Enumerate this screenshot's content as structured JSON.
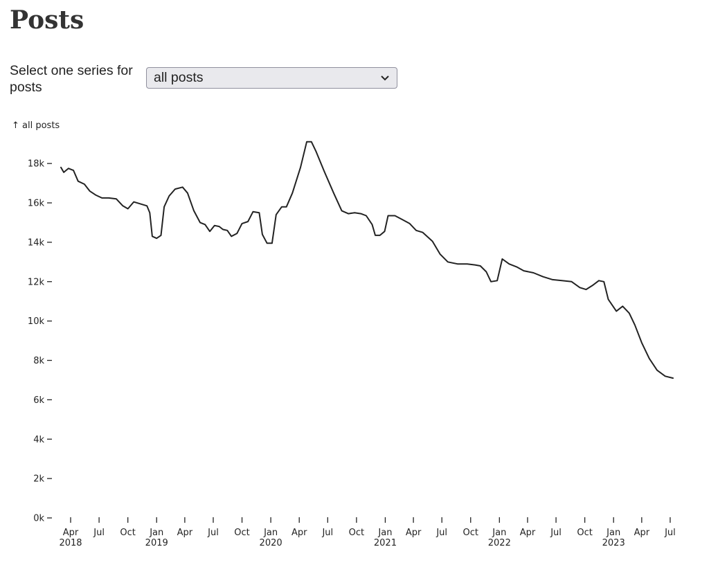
{
  "page": {
    "title": "Posts"
  },
  "control": {
    "label": "Select one series for posts",
    "selected": "all posts"
  },
  "chart_data": {
    "type": "line",
    "title": "",
    "ylabel": "↑ all posts",
    "xlabel": "",
    "series": [
      {
        "name": "all posts",
        "color": "#222222",
        "points": [
          [
            "2018-03-01",
            17800
          ],
          [
            "2018-03-10",
            17550
          ],
          [
            "2018-03-25",
            17750
          ],
          [
            "2018-04-10",
            17650
          ],
          [
            "2018-04-25",
            17100
          ],
          [
            "2018-05-15",
            16950
          ],
          [
            "2018-06-01",
            16600
          ],
          [
            "2018-06-20",
            16400
          ],
          [
            "2018-07-10",
            16250
          ],
          [
            "2018-08-01",
            16250
          ],
          [
            "2018-08-25",
            16200
          ],
          [
            "2018-09-15",
            15850
          ],
          [
            "2018-10-01",
            15700
          ],
          [
            "2018-10-20",
            16050
          ],
          [
            "2018-11-10",
            15950
          ],
          [
            "2018-12-01",
            15850
          ],
          [
            "2018-12-10",
            15500
          ],
          [
            "2018-12-18",
            14300
          ],
          [
            "2019-01-01",
            14200
          ],
          [
            "2019-01-15",
            14350
          ],
          [
            "2019-01-25",
            15800
          ],
          [
            "2019-02-10",
            16350
          ],
          [
            "2019-03-01",
            16700
          ],
          [
            "2019-03-25",
            16800
          ],
          [
            "2019-04-10",
            16500
          ],
          [
            "2019-04-30",
            15600
          ],
          [
            "2019-05-20",
            15000
          ],
          [
            "2019-06-05",
            14900
          ],
          [
            "2019-06-20",
            14550
          ],
          [
            "2019-07-05",
            14850
          ],
          [
            "2019-07-20",
            14800
          ],
          [
            "2019-08-01",
            14650
          ],
          [
            "2019-08-15",
            14600
          ],
          [
            "2019-08-28",
            14300
          ],
          [
            "2019-09-15",
            14450
          ],
          [
            "2019-10-01",
            14950
          ],
          [
            "2019-10-20",
            15050
          ],
          [
            "2019-11-05",
            15550
          ],
          [
            "2019-11-25",
            15500
          ],
          [
            "2019-12-05",
            14400
          ],
          [
            "2019-12-20",
            13950
          ],
          [
            "2020-01-05",
            13950
          ],
          [
            "2020-01-18",
            15400
          ],
          [
            "2020-02-05",
            15800
          ],
          [
            "2020-02-20",
            15800
          ],
          [
            "2020-03-10",
            16500
          ],
          [
            "2020-04-05",
            17800
          ],
          [
            "2020-04-25",
            19100
          ],
          [
            "2020-05-10",
            19100
          ],
          [
            "2020-05-25",
            18600
          ],
          [
            "2020-06-20",
            17600
          ],
          [
            "2020-07-20",
            16500
          ],
          [
            "2020-08-15",
            15600
          ],
          [
            "2020-09-05",
            15450
          ],
          [
            "2020-09-25",
            15500
          ],
          [
            "2020-10-15",
            15450
          ],
          [
            "2020-11-01",
            15350
          ],
          [
            "2020-11-20",
            14900
          ],
          [
            "2020-11-30",
            14350
          ],
          [
            "2020-12-15",
            14350
          ],
          [
            "2020-12-30",
            14550
          ],
          [
            "2021-01-10",
            15350
          ],
          [
            "2021-02-01",
            15350
          ],
          [
            "2021-02-25",
            15150
          ],
          [
            "2021-03-20",
            14950
          ],
          [
            "2021-04-10",
            14600
          ],
          [
            "2021-05-01",
            14500
          ],
          [
            "2021-06-01",
            14050
          ],
          [
            "2021-06-25",
            13400
          ],
          [
            "2021-07-20",
            13000
          ],
          [
            "2021-08-20",
            12900
          ],
          [
            "2021-09-20",
            12900
          ],
          [
            "2021-10-15",
            12850
          ],
          [
            "2021-11-01",
            12800
          ],
          [
            "2021-11-20",
            12500
          ],
          [
            "2021-12-05",
            12000
          ],
          [
            "2021-12-25",
            12050
          ],
          [
            "2022-01-10",
            13150
          ],
          [
            "2022-02-01",
            12900
          ],
          [
            "2022-02-25",
            12750
          ],
          [
            "2022-03-20",
            12550
          ],
          [
            "2022-04-20",
            12450
          ],
          [
            "2022-05-20",
            12250
          ],
          [
            "2022-06-20",
            12100
          ],
          [
            "2022-07-20",
            12050
          ],
          [
            "2022-08-20",
            12000
          ],
          [
            "2022-09-15",
            11700
          ],
          [
            "2022-10-05",
            11600
          ],
          [
            "2022-10-25",
            11800
          ],
          [
            "2022-11-15",
            12050
          ],
          [
            "2022-12-01",
            12000
          ],
          [
            "2022-12-15",
            11100
          ],
          [
            "2023-01-10",
            10500
          ],
          [
            "2023-01-30",
            10750
          ],
          [
            "2023-02-20",
            10400
          ],
          [
            "2023-03-10",
            9800
          ],
          [
            "2023-04-01",
            8900
          ],
          [
            "2023-04-25",
            8100
          ],
          [
            "2023-05-20",
            7500
          ],
          [
            "2023-06-15",
            7200
          ],
          [
            "2023-07-10",
            7100
          ]
        ]
      }
    ],
    "ylim": [
      0,
      19200
    ],
    "yticks": [
      {
        "value": 0,
        "label": "0k"
      },
      {
        "value": 2000,
        "label": "2k"
      },
      {
        "value": 4000,
        "label": "4k"
      },
      {
        "value": 6000,
        "label": "6k"
      },
      {
        "value": 8000,
        "label": "8k"
      },
      {
        "value": 10000,
        "label": "10k"
      },
      {
        "value": 12000,
        "label": "12k"
      },
      {
        "value": 14000,
        "label": "14k"
      },
      {
        "value": 16000,
        "label": "16k"
      },
      {
        "value": 18000,
        "label": "18k"
      }
    ],
    "xlim": [
      "2018-03-01",
      "2023-07-10"
    ],
    "xticks": [
      {
        "date": "2018-04-01",
        "label": "Apr",
        "sub": "2018"
      },
      {
        "date": "2018-07-01",
        "label": "Jul",
        "sub": ""
      },
      {
        "date": "2018-10-01",
        "label": "Oct",
        "sub": ""
      },
      {
        "date": "2019-01-01",
        "label": "Jan",
        "sub": "2019"
      },
      {
        "date": "2019-04-01",
        "label": "Apr",
        "sub": ""
      },
      {
        "date": "2019-07-01",
        "label": "Jul",
        "sub": ""
      },
      {
        "date": "2019-10-01",
        "label": "Oct",
        "sub": ""
      },
      {
        "date": "2020-01-01",
        "label": "Jan",
        "sub": "2020"
      },
      {
        "date": "2020-04-01",
        "label": "Apr",
        "sub": ""
      },
      {
        "date": "2020-07-01",
        "label": "Jul",
        "sub": ""
      },
      {
        "date": "2020-10-01",
        "label": "Oct",
        "sub": ""
      },
      {
        "date": "2021-01-01",
        "label": "Jan",
        "sub": "2021"
      },
      {
        "date": "2021-04-01",
        "label": "Apr",
        "sub": ""
      },
      {
        "date": "2021-07-01",
        "label": "Jul",
        "sub": ""
      },
      {
        "date": "2021-10-01",
        "label": "Oct",
        "sub": ""
      },
      {
        "date": "2022-01-01",
        "label": "Jan",
        "sub": "2022"
      },
      {
        "date": "2022-04-01",
        "label": "Apr",
        "sub": ""
      },
      {
        "date": "2022-07-01",
        "label": "Jul",
        "sub": ""
      },
      {
        "date": "2022-10-01",
        "label": "Oct",
        "sub": ""
      },
      {
        "date": "2023-01-01",
        "label": "Jan",
        "sub": "2023"
      },
      {
        "date": "2023-04-01",
        "label": "Apr",
        "sub": ""
      },
      {
        "date": "2023-07-01",
        "label": "Jul",
        "sub": ""
      }
    ],
    "grid": false,
    "legend": "none"
  }
}
